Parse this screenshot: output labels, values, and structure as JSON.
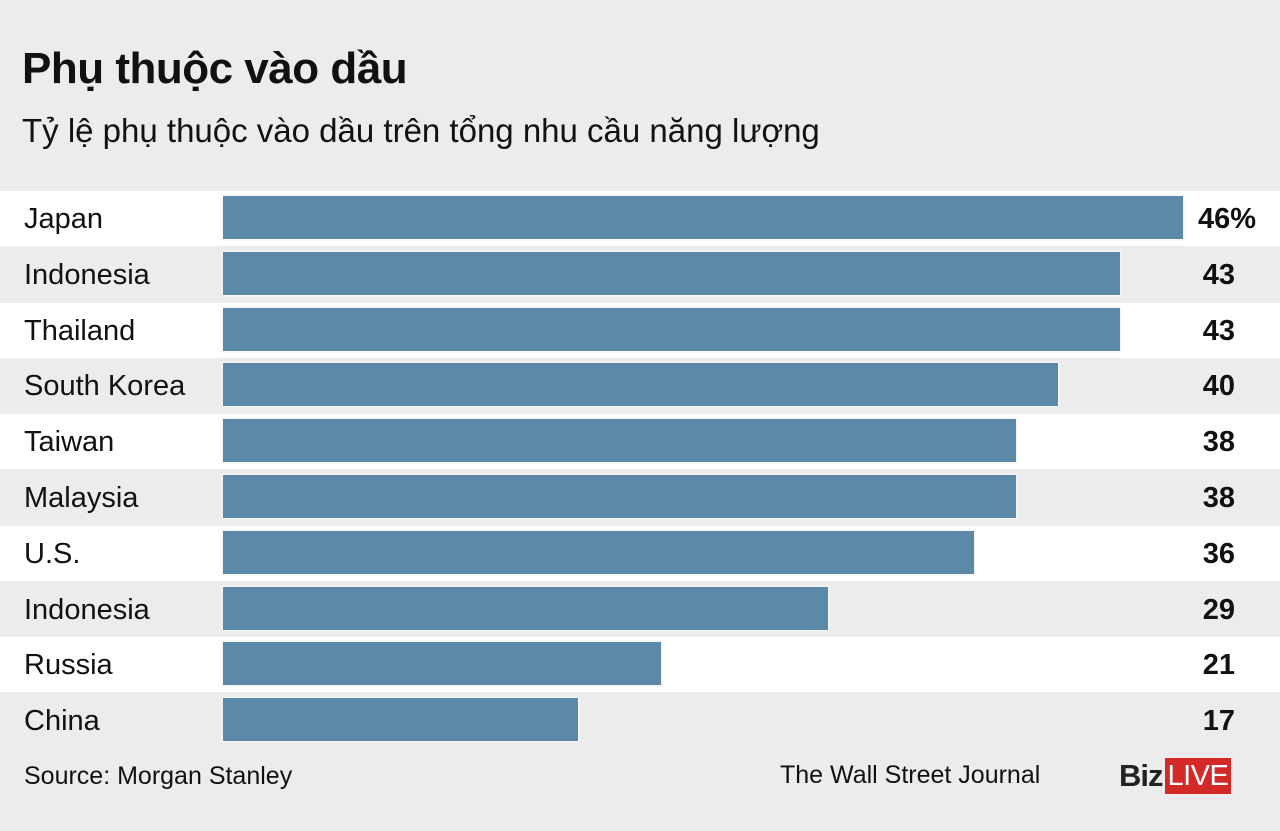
{
  "chart_data": {
    "type": "bar",
    "orientation": "horizontal",
    "title": "Phụ thuộc vào dầu",
    "subtitle": "Tỷ lệ phụ thuộc vào dầu trên tổng nhu cầu năng lượng",
    "categories": [
      "Japan",
      "Indonesia",
      "Thailand",
      "South Korea",
      "Taiwan",
      "Malaysia",
      "U.S.",
      "Indonesia",
      "Russia",
      "China"
    ],
    "values": [
      46,
      43,
      43,
      40,
      38,
      38,
      36,
      29,
      21,
      17
    ],
    "value_labels": [
      "46%",
      "43",
      "43",
      "40",
      "38",
      "38",
      "36",
      "29",
      "21",
      "17"
    ],
    "unit": "%",
    "xlim": [
      0,
      46
    ],
    "grid": false,
    "bar_color": "#5d89a8"
  },
  "footer": {
    "source": "Source: Morgan Stanley",
    "credit": "The Wall Street Journal",
    "logo_biz": "Biz",
    "logo_live": "LIVE",
    "logo_accent": "#d42a27"
  }
}
